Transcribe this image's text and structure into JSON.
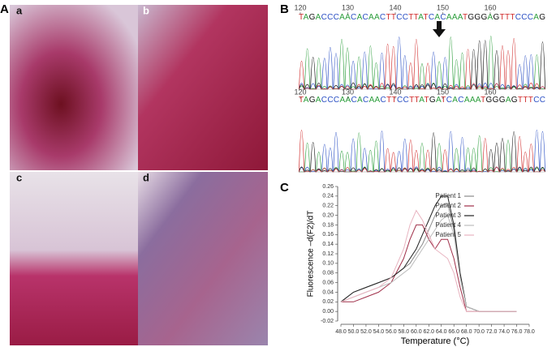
{
  "panel_labels": [
    "A",
    "B",
    "C"
  ],
  "subpanel_labels": [
    "a",
    "b",
    "c",
    "d"
  ],
  "sequences": [
    {
      "text": "TAGACCCAACACAACTTCCTTATCACAAATGGGAGTTTCCCAG",
      "ruler": [
        120,
        130,
        140,
        150,
        160
      ]
    },
    {
      "text": "TAGACCCAACACAACTTCCTTATGATCACAAATGGGAGTTTCC",
      "ruler": [
        120,
        130,
        140,
        150,
        160
      ]
    }
  ],
  "chart_data": {
    "type": "line",
    "xlabel": "Temperature (°C)",
    "ylabel": "Fluorescence –d(F2)/dT",
    "x": [
      48,
      50,
      52,
      54,
      56,
      58,
      59,
      60,
      61,
      62,
      63,
      64,
      65,
      66,
      67,
      68,
      70,
      72,
      74,
      76
    ],
    "series": [
      {
        "name": "Patient 1",
        "color": "#8a8a8a",
        "values": [
          0.02,
          0.04,
          0.05,
          0.06,
          0.07,
          0.09,
          0.1,
          0.12,
          0.14,
          0.17,
          0.2,
          0.22,
          0.225,
          0.17,
          0.07,
          0.01,
          0.0,
          0.0,
          0.0,
          0.0
        ]
      },
      {
        "name": "Patient 2",
        "color": "#a0304a",
        "values": [
          0.02,
          0.02,
          0.03,
          0.04,
          0.06,
          0.11,
          0.15,
          0.18,
          0.18,
          0.15,
          0.13,
          0.15,
          0.15,
          0.11,
          0.05,
          0.0,
          0.0,
          0.0,
          0.0,
          0.0
        ]
      },
      {
        "name": "Patient 3",
        "color": "#222222",
        "values": [
          0.02,
          0.04,
          0.05,
          0.06,
          0.07,
          0.09,
          0.11,
          0.13,
          0.16,
          0.19,
          0.22,
          0.24,
          0.24,
          0.18,
          0.08,
          0.01,
          0.0,
          0.0,
          0.0,
          0.0
        ]
      },
      {
        "name": "Patient 4",
        "color": "#bdbdbd",
        "values": [
          0.02,
          0.03,
          0.04,
          0.05,
          0.06,
          0.08,
          0.09,
          0.11,
          0.13,
          0.15,
          0.17,
          0.19,
          0.2,
          0.16,
          0.07,
          0.01,
          0.0,
          0.0,
          0.0,
          0.0
        ]
      },
      {
        "name": "Patient 5",
        "color": "#e8b4c0",
        "values": [
          0.02,
          0.03,
          0.04,
          0.05,
          0.07,
          0.13,
          0.18,
          0.21,
          0.19,
          0.16,
          0.13,
          0.12,
          0.11,
          0.08,
          0.03,
          0.0,
          0.0,
          0.0,
          0.0,
          0.0
        ]
      }
    ],
    "xlim": [
      48,
      78
    ],
    "xticks": [
      {
        "value": 48,
        "label": "48.0"
      },
      {
        "value": 50,
        "label": "50.0"
      },
      {
        "value": 52,
        "label": "52.0"
      },
      {
        "value": 54,
        "label": "54.0"
      },
      {
        "value": 56,
        "label": "56.0"
      },
      {
        "value": 58,
        "label": "58.0"
      },
      {
        "value": 60,
        "label": "60.0"
      },
      {
        "value": 62,
        "label": "62.0"
      },
      {
        "value": 64,
        "label": "64.0"
      },
      {
        "value": 66,
        "label": "66.0"
      },
      {
        "value": 68,
        "label": "68.0"
      },
      {
        "value": 70,
        "label": "70.0"
      },
      {
        "value": 72,
        "label": "72.0"
      },
      {
        "value": 74,
        "label": "74.0"
      },
      {
        "value": 76,
        "label": "76.0"
      },
      {
        "value": 78,
        "label": "78.0"
      }
    ],
    "ylim": [
      -0.02,
      0.26
    ],
    "yticks": [
      {
        "value": -0.02,
        "label": "-0.02"
      },
      {
        "value": 0,
        "label": "0.00"
      },
      {
        "value": 0.02,
        "label": "0.02"
      },
      {
        "value": 0.04,
        "label": "0.04"
      },
      {
        "value": 0.06,
        "label": "0.06"
      },
      {
        "value": 0.08,
        "label": "0.08"
      },
      {
        "value": 0.1,
        "label": "0.10"
      },
      {
        "value": 0.12,
        "label": "0.12"
      },
      {
        "value": 0.14,
        "label": "0.14"
      },
      {
        "value": 0.16,
        "label": "0.16"
      },
      {
        "value": 0.18,
        "label": "0.18"
      },
      {
        "value": 0.2,
        "label": "0.20"
      },
      {
        "value": 0.22,
        "label": "0.22"
      },
      {
        "value": 0.24,
        "label": "0.24"
      },
      {
        "value": 0.26,
        "label": "0.26"
      }
    ],
    "legend": "upper-right"
  }
}
